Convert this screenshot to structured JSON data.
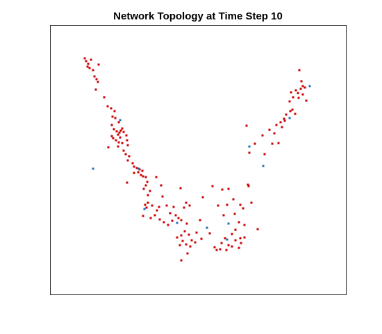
{
  "chart_data": {
    "type": "scatter",
    "title": "Network Topology at Time Step 10",
    "xlabel": "",
    "ylabel": "",
    "axis_ticks": "none",
    "grid": false,
    "box": true,
    "marker": "square",
    "series": [
      {
        "color": "#cc0000",
        "points": [
          [
            122,
            84
          ],
          [
            124,
            88
          ],
          [
            127,
            92
          ],
          [
            126,
            96
          ],
          [
            129,
            98
          ],
          [
            134,
            101
          ],
          [
            131,
            86
          ],
          [
            142,
            93
          ],
          [
            136,
            110
          ],
          [
            139,
            114
          ],
          [
            141,
            118
          ],
          [
            138,
            129
          ],
          [
            150,
            140
          ],
          [
            155,
            153
          ],
          [
            160,
            156
          ],
          [
            165,
            160
          ],
          [
            162,
            168
          ],
          [
            166,
            170
          ],
          [
            171,
            176
          ],
          [
            161,
            180
          ],
          [
            164,
            186
          ],
          [
            168,
            189
          ],
          [
            172,
            191
          ],
          [
            174,
            188
          ],
          [
            176,
            185
          ],
          [
            178,
            190
          ],
          [
            170,
            194
          ],
          [
            173,
            198
          ],
          [
            182,
            195
          ],
          [
            161,
            196
          ],
          [
            163,
            199
          ],
          [
            167,
            202
          ],
          [
            171,
            205
          ],
          [
            176,
            206
          ],
          [
            183,
            202
          ],
          [
            184,
            209
          ],
          [
            170,
            211
          ],
          [
            156,
            212
          ],
          [
            178,
            217
          ],
          [
            181,
            222
          ],
          [
            186,
            225
          ],
          [
            184,
            231
          ],
          [
            191,
            235
          ],
          [
            193,
            240
          ],
          [
            197,
            242
          ],
          [
            201,
            244
          ],
          [
            205,
            246
          ],
          [
            199,
            248
          ],
          [
            193,
            249
          ],
          [
            203,
            252
          ],
          [
            206,
            254
          ],
          [
            210,
            255
          ],
          [
            212,
            262
          ],
          [
            183,
            263
          ],
          [
            210,
            267
          ],
          [
            207,
            272
          ],
          [
            216,
            275
          ],
          [
            213,
            281
          ],
          [
            213,
            292
          ],
          [
            209,
            295
          ],
          [
            211,
            299
          ],
          [
            219,
            296
          ],
          [
            229,
            298
          ],
          [
            226,
            303
          ],
          [
            223,
            310
          ],
          [
            217,
            314
          ],
          [
            206,
            311
          ],
          [
            230,
            316
          ],
          [
            236,
            320
          ],
          [
            242,
            324
          ],
          [
            248,
            318
          ],
          [
            257,
            314
          ],
          [
            253,
            310
          ],
          [
            261,
            317
          ],
          [
            245,
            307
          ],
          [
            250,
            298
          ],
          [
            240,
            296
          ],
          [
            234,
            283
          ],
          [
            232,
            267
          ],
          [
            225,
            255
          ],
          [
            260,
            271
          ],
          [
            268,
            292
          ],
          [
            265,
            299
          ],
          [
            273,
            296
          ],
          [
            269,
            322
          ],
          [
            266,
            333
          ],
          [
            272,
            338
          ],
          [
            261,
            339
          ],
          [
            255,
            342
          ],
          [
            263,
            347
          ],
          [
            268,
            352
          ],
          [
            259,
            353
          ],
          [
            274,
            355
          ],
          [
            276,
            346
          ],
          [
            281,
            349
          ],
          [
            270,
            365
          ],
          [
            261,
            375
          ],
          [
            283,
            335
          ],
          [
            290,
            344
          ],
          [
            292,
            284
          ],
          [
            288,
            317
          ],
          [
            302,
            336
          ],
          [
            306,
            268
          ],
          [
            320,
            273
          ],
          [
            329,
            272
          ],
          [
            327,
            295
          ],
          [
            314,
            296
          ],
          [
            322,
            310
          ],
          [
            336,
            287
          ],
          [
            338,
            308
          ],
          [
            346,
            295
          ],
          [
            350,
            300
          ],
          [
            344,
            320
          ],
          [
            352,
            324
          ],
          [
            339,
            331
          ],
          [
            334,
            337
          ],
          [
            324,
            343
          ],
          [
            319,
            350
          ],
          [
            329,
            353
          ],
          [
            334,
            355
          ],
          [
            339,
            346
          ],
          [
            346,
            343
          ],
          [
            352,
            342
          ],
          [
            317,
            359
          ],
          [
            312,
            360
          ],
          [
            309,
            356
          ],
          [
            326,
            360
          ],
          [
            344,
            357
          ],
          [
            347,
            350
          ],
          [
            362,
            292
          ],
          [
            371,
            330
          ],
          [
            357,
            266
          ],
          [
            358,
            268
          ],
          [
            359,
            220
          ],
          [
            355,
            181
          ],
          [
            367,
            207
          ],
          [
            378,
            195
          ],
          [
            381,
            222
          ],
          [
            388,
            187
          ],
          [
            392,
            207
          ],
          [
            395,
            192
          ],
          [
            401,
            206
          ],
          [
            398,
            180
          ],
          [
            406,
            183
          ],
          [
            404,
            176
          ],
          [
            409,
            171
          ],
          [
            412,
            165
          ],
          [
            410,
            174
          ],
          [
            418,
            160
          ],
          [
            421,
            158
          ],
          [
            425,
            164
          ],
          [
            417,
            146
          ],
          [
            422,
            140
          ],
          [
            426,
            130
          ],
          [
            429,
            134
          ],
          [
            430,
            141
          ],
          [
            433,
            128
          ],
          [
            436,
            136
          ],
          [
            439,
            126
          ],
          [
            434,
            117
          ],
          [
            431,
            101
          ],
          [
            419,
            133
          ],
          [
            441,
            145
          ],
          [
            436,
            124
          ]
        ]
      },
      {
        "color": "#1f6fb5",
        "points": [
          [
            173,
            173
          ],
          [
            134,
            243
          ],
          [
            200,
            243
          ],
          [
            208,
            301
          ],
          [
            255,
            321
          ],
          [
            298,
            328
          ],
          [
            329,
            322
          ],
          [
            359,
            211
          ],
          [
            379,
            239
          ],
          [
            446,
            124
          ],
          [
            417,
            170
          ],
          [
            327,
            345
          ]
        ]
      }
    ]
  }
}
